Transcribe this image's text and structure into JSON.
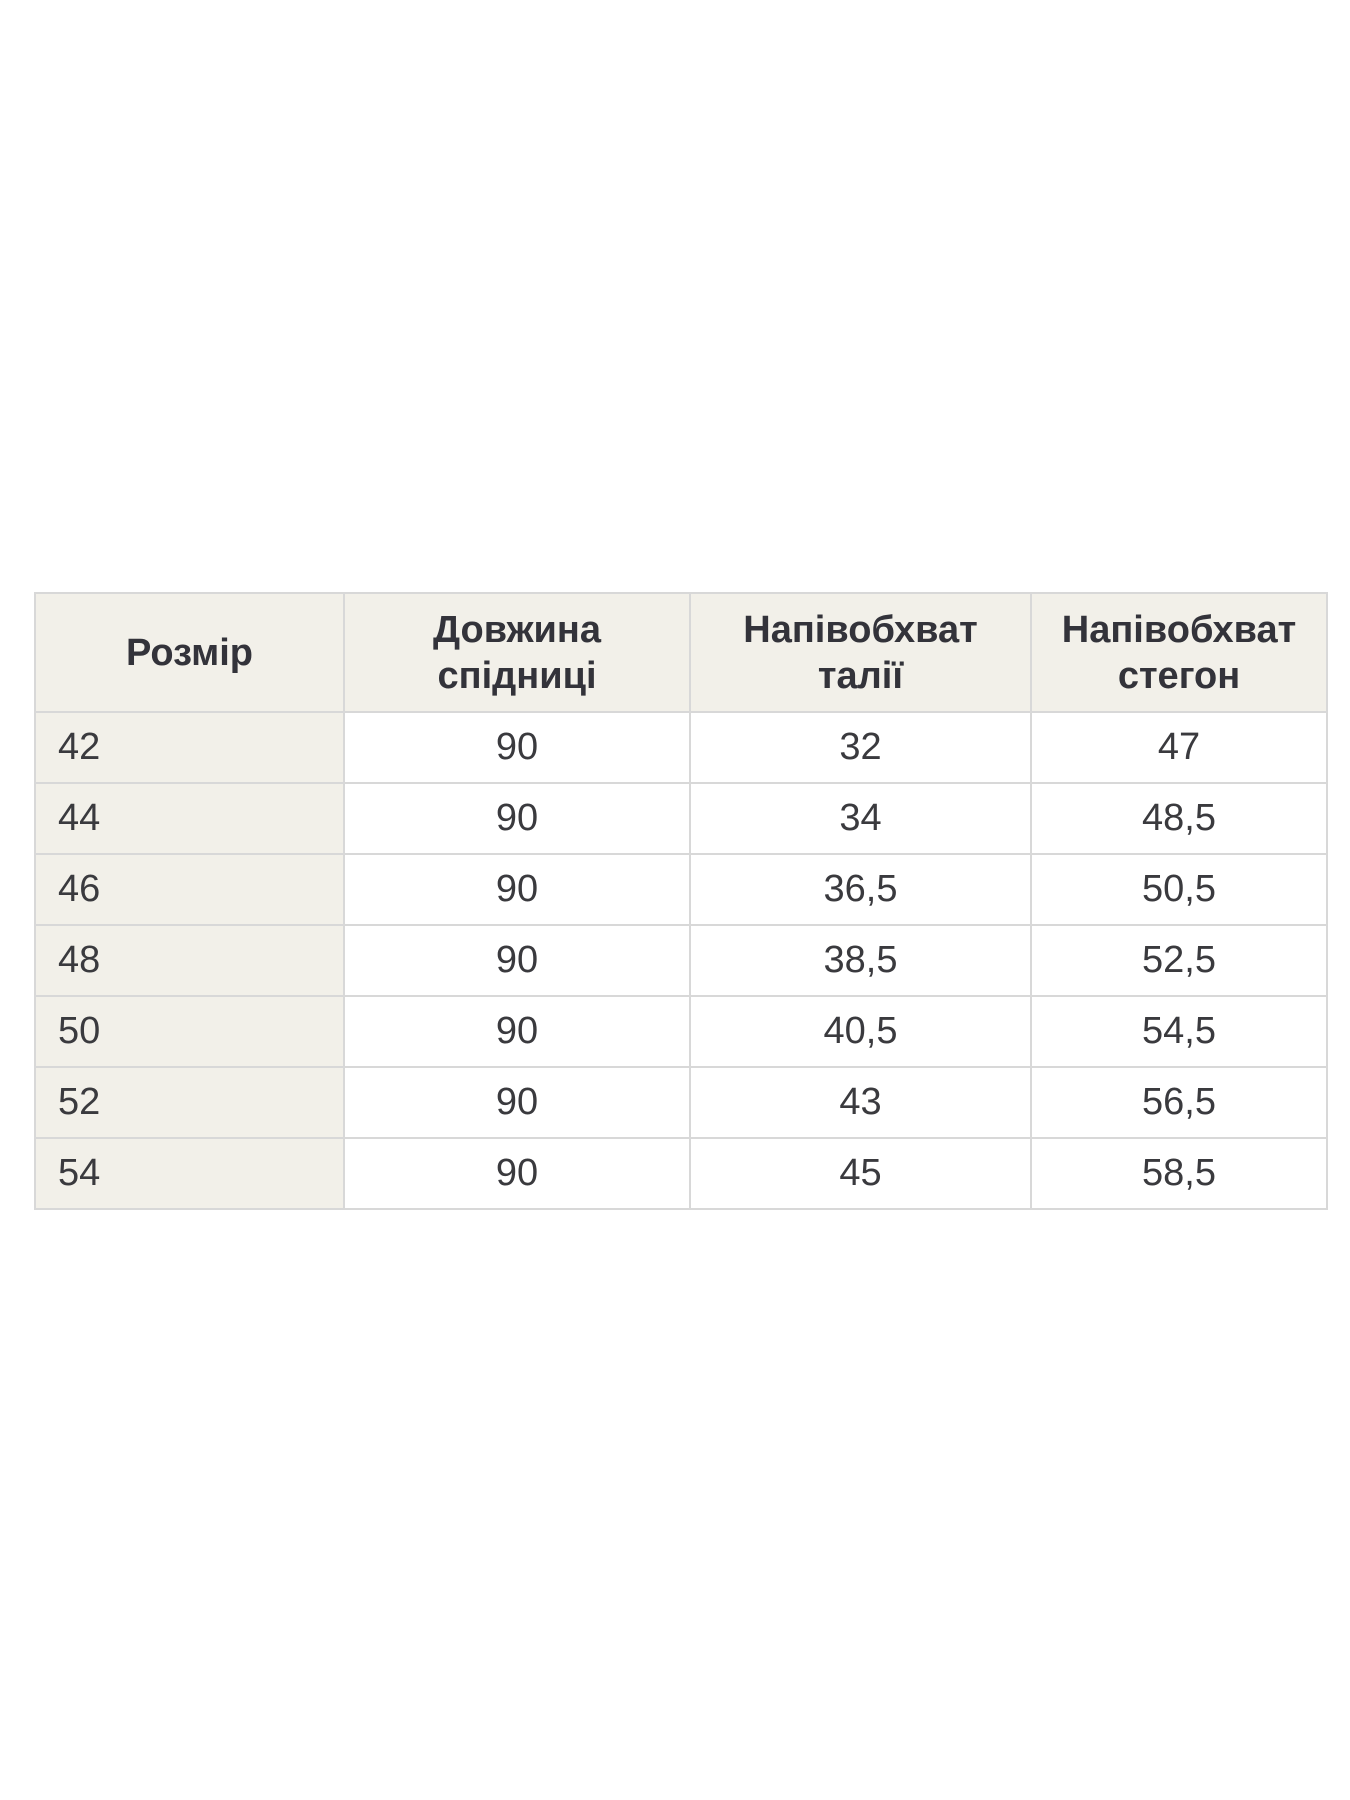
{
  "table": {
    "headers": [
      "Розмір",
      "Довжина спідниці",
      "Напівобхват талії",
      "Напівобхват стегон"
    ],
    "rows": [
      [
        "42",
        "90",
        "32",
        "47"
      ],
      [
        "44",
        "90",
        "34",
        "48,5"
      ],
      [
        "46",
        "90",
        "36,5",
        "50,5"
      ],
      [
        "48",
        "90",
        "38,5",
        "52,5"
      ],
      [
        "50",
        "90",
        "40,5",
        "54,5"
      ],
      [
        "52",
        "90",
        "43",
        "56,5"
      ],
      [
        "54",
        "90",
        "45",
        "58,5"
      ]
    ],
    "colors": {
      "header_background": "#f2f0e9",
      "row_label_background": "#f2f0e9",
      "cell_background": "#ffffff",
      "border": "#d8d8d8",
      "header_text": "#33333a",
      "cell_text": "#3a3a3e"
    }
  }
}
